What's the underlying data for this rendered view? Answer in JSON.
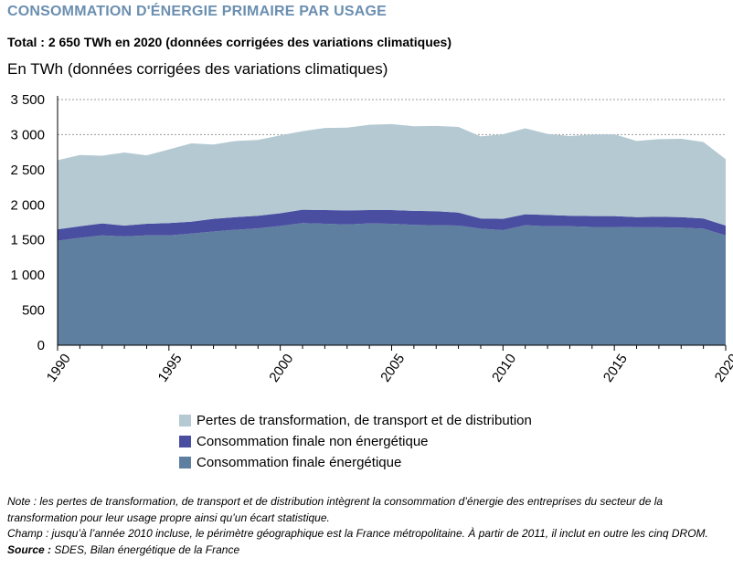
{
  "title": "CONSOMMATION D'ÉNERGIE PRIMAIRE PAR USAGE",
  "subtitle": "Total : 2 650 TWh en 2020 (données corrigées des variations climatiques)",
  "unit_label": "En TWh (données corrigées des variations climatiques)",
  "chart_data": {
    "type": "area",
    "stacked": true,
    "x": [
      1990,
      1991,
      1992,
      1993,
      1994,
      1995,
      1996,
      1997,
      1998,
      1999,
      2000,
      2001,
      2002,
      2003,
      2004,
      2005,
      2006,
      2007,
      2008,
      2009,
      2010,
      2011,
      2012,
      2013,
      2014,
      2015,
      2016,
      2017,
      2018,
      2019,
      2020
    ],
    "x_ticks": [
      "1990",
      "1995",
      "2000",
      "2005",
      "2010",
      "2015",
      "2020"
    ],
    "y_ticks": [
      "0",
      "500",
      "1 000",
      "1 500",
      "2 000",
      "2 500",
      "3 000",
      "3 500"
    ],
    "ylim": [
      0,
      3500
    ],
    "grid": true,
    "legend_position": "bottom",
    "series": [
      {
        "name": "Consommation finale énergétique",
        "color": "#5e7fa0",
        "values": [
          1490,
          1530,
          1565,
          1550,
          1565,
          1565,
          1590,
          1620,
          1645,
          1665,
          1700,
          1740,
          1730,
          1720,
          1735,
          1730,
          1715,
          1710,
          1705,
          1660,
          1640,
          1710,
          1695,
          1695,
          1685,
          1685,
          1680,
          1680,
          1675,
          1660,
          1565
        ]
      },
      {
        "name": "Consommation finale non énergétique",
        "color": "#4a4ea0",
        "values": [
          160,
          165,
          170,
          155,
          165,
          175,
          170,
          180,
          180,
          180,
          180,
          190,
          195,
          200,
          190,
          195,
          200,
          200,
          185,
          145,
          160,
          155,
          160,
          150,
          155,
          155,
          145,
          150,
          150,
          145,
          140
        ]
      },
      {
        "name": "Pertes de transformation, de transport et de distribution",
        "color": "#b4c9d2",
        "values": [
          985,
          1015,
          965,
          1040,
          975,
          1050,
          1115,
          1060,
          1085,
          1080,
          1110,
          1120,
          1170,
          1180,
          1215,
          1225,
          1205,
          1215,
          1220,
          1170,
          1205,
          1225,
          1155,
          1135,
          1160,
          1165,
          1085,
          1105,
          1115,
          1090,
          945
        ]
      }
    ]
  },
  "legend": [
    {
      "label": "Pertes de transformation, de transport et de distribution",
      "color": "#b4c9d2"
    },
    {
      "label": "Consommation finale non énergétique",
      "color": "#4a4ea0"
    },
    {
      "label": "Consommation finale énergétique",
      "color": "#5e7fa0"
    }
  ],
  "notes": {
    "note": "Note : les pertes de transformation, de transport et de distribution intègrent la consommation d’énergie des entreprises du secteur de la transformation pour leur usage propre ainsi qu’un écart statistique.",
    "champ": "Champ : jusqu’à l’année 2010 incluse, le périmètre géographique est la France métropolitaine. À partir de 2011, il inclut en outre les cinq DROM.",
    "source_label": "Source :",
    "source_text": " SDES, Bilan énergétique de la France"
  }
}
